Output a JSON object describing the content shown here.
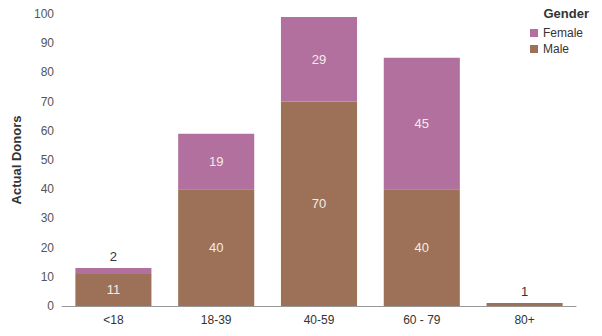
{
  "chart_data": {
    "type": "bar",
    "stacked": true,
    "data_labels": true,
    "grid": false,
    "legend": "top-right",
    "legend_title": "Gender",
    "y_label": "Actual Donors",
    "categories": [
      "<18",
      "18-39",
      "40-59",
      "60 - 79",
      "80+"
    ],
    "series": [
      {
        "name": "Male",
        "color": "#9c7158",
        "values": [
          11,
          40,
          70,
          40,
          1
        ]
      },
      {
        "name": "Female",
        "color": "#b2709e",
        "values": [
          2,
          19,
          29,
          45,
          null
        ]
      }
    ],
    "ylim": [
      0,
      100
    ],
    "yticks": [
      0,
      10,
      20,
      30,
      40,
      50,
      60,
      70,
      80,
      90,
      100
    ]
  }
}
